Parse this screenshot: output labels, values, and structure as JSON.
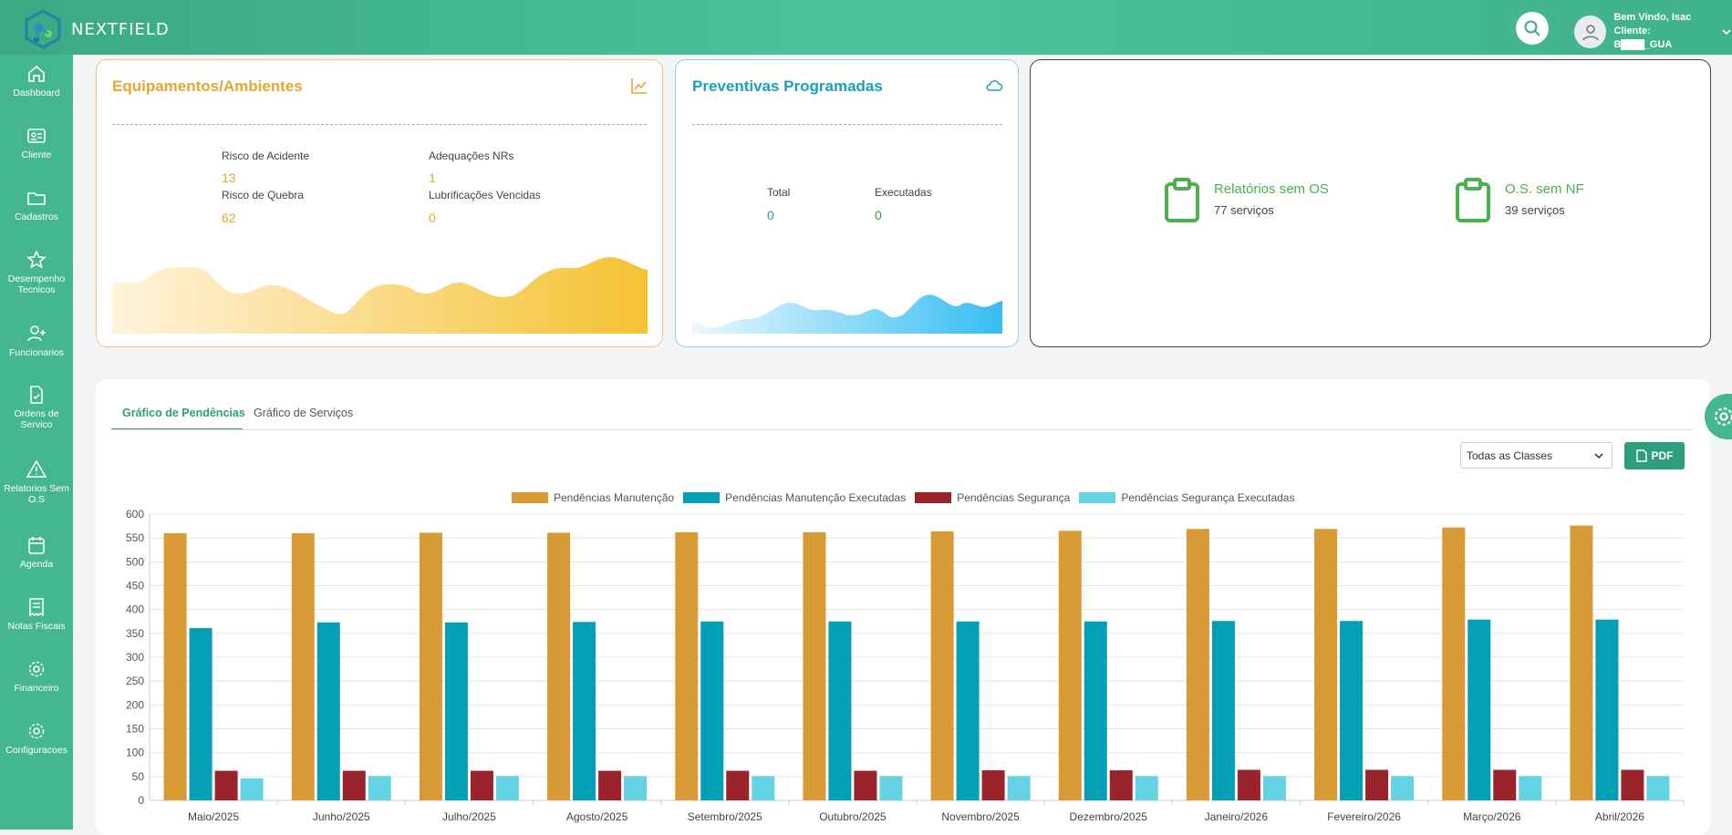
{
  "brand": {
    "name": "NEXTFIELD"
  },
  "user": {
    "greeting": "Bem Vindo, Isac",
    "client": "Cliente: B▇▇▇_GUA"
  },
  "sidebar": {
    "items": [
      {
        "label": "Dashboard",
        "icon": "home-icon"
      },
      {
        "label": "Cliente",
        "icon": "id-card-icon"
      },
      {
        "label": "Cadastros",
        "icon": "folder-icon"
      },
      {
        "label": "Desempenho Tecnicos",
        "icon": "star-icon"
      },
      {
        "label": "Funcionarios",
        "icon": "user-plus-icon"
      },
      {
        "label": "Ordens de Servico",
        "icon": "file-check-icon"
      },
      {
        "label": "Relatorios Sem O.S",
        "icon": "warning-icon"
      },
      {
        "label": "Agenda",
        "icon": "calendar-icon"
      },
      {
        "label": "Notas Fiscais",
        "icon": "receipt-icon"
      },
      {
        "label": "Financeiro",
        "icon": "gear-icon"
      },
      {
        "label": "Configuracoes",
        "icon": "gear-icon"
      }
    ]
  },
  "equip_card": {
    "title": "Equipamentos/Ambientes",
    "color": "#e8a530",
    "stats": [
      {
        "label": "Risco de Acidente",
        "value": "13"
      },
      {
        "label": "Adequações NRs",
        "value": "1"
      },
      {
        "label": "Risco de Quebra",
        "value": "62"
      },
      {
        "label": "Lubrificações Vencidas",
        "value": "0"
      }
    ]
  },
  "prev_card": {
    "title": "Preventivas Programadas",
    "color": "#17a2b8",
    "stats": [
      {
        "label": "Total",
        "value": "0"
      },
      {
        "label": "Executadas",
        "value": "0"
      }
    ]
  },
  "pending_card": {
    "items": [
      {
        "title": "Relatórios sem OS",
        "subtitle": "77 serviços"
      },
      {
        "title": "O.S. sem NF",
        "subtitle": "39 serviços"
      }
    ]
  },
  "tabs": [
    "Gráfico de Pendências",
    "Gráfico de Serviços"
  ],
  "filter": {
    "selected": "Todas as Classes"
  },
  "pdf_label": "PDF",
  "chart_data": {
    "type": "bar",
    "categories": [
      "Maio/2025",
      "Junho/2025",
      "Julho/2025",
      "Agosto/2025",
      "Setembro/2025",
      "Outubro/2025",
      "Novembro/2025",
      "Dezembro/2025",
      "Janeiro/2026",
      "Fevereiro/2026",
      "Março/2026",
      "Abril/2026"
    ],
    "series": [
      {
        "name": "Pendências Manutenção",
        "color": "#d89a35",
        "values": [
          560,
          560,
          561,
          561,
          562,
          562,
          564,
          565,
          569,
          569,
          572,
          576
        ]
      },
      {
        "name": "Pendências Manutenção Executadas",
        "color": "#029fb5",
        "values": [
          361,
          373,
          373,
          374,
          375,
          375,
          375,
          375,
          376,
          376,
          379,
          379
        ]
      },
      {
        "name": "Pendências Segurança",
        "color": "#9b232c",
        "values": [
          62,
          62,
          62,
          62,
          62,
          62,
          63,
          63,
          64,
          64,
          64,
          64
        ]
      },
      {
        "name": "Pendências Segurança Executadas",
        "color": "#63d3e3",
        "values": [
          46,
          51,
          51,
          51,
          51,
          51,
          51,
          51,
          51,
          51,
          51,
          51
        ]
      }
    ],
    "ylim": [
      0,
      600
    ],
    "yticks": [
      "0",
      "50",
      "100",
      "150",
      "200",
      "250",
      "300",
      "350",
      "400",
      "450",
      "500",
      "550",
      "600"
    ],
    "grid": true,
    "legend": "top-center"
  }
}
